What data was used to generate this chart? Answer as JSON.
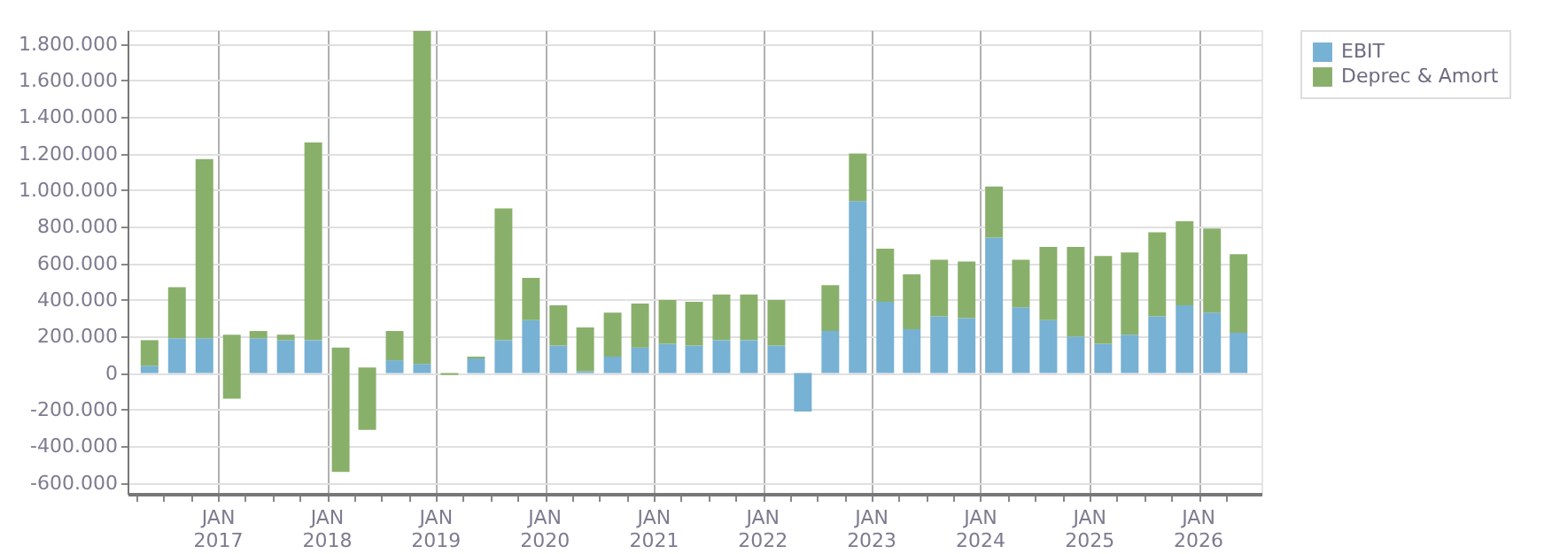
{
  "chart_data": {
    "type": "bar",
    "stacked": true,
    "x": [
      "2016-05-15",
      "2016-08-15",
      "2016-11-15",
      "2017-02-15",
      "2017-05-15",
      "2017-08-15",
      "2017-11-15",
      "2018-02-15",
      "2018-05-15",
      "2018-08-15",
      "2018-11-15",
      "2019-02-15",
      "2019-05-15",
      "2019-08-15",
      "2019-11-15",
      "2020-02-15",
      "2020-05-15",
      "2020-08-15",
      "2020-11-15",
      "2021-02-15",
      "2021-05-15",
      "2021-08-15",
      "2021-11-15",
      "2022-02-15",
      "2022-05-15",
      "2022-08-15",
      "2022-11-15",
      "2023-02-15",
      "2023-05-15",
      "2023-08-15",
      "2023-11-15",
      "2024-02-15",
      "2024-05-15",
      "2024-08-15",
      "2024-11-15",
      "2025-02-15",
      "2025-05-15",
      "2025-08-15",
      "2025-11-15",
      "2026-02-15",
      "2026-05-15"
    ],
    "series": [
      {
        "name": "EBIT",
        "color": "#77b1d4",
        "values": [
          40000,
          190000,
          190000,
          null,
          190000,
          180000,
          180000,
          null,
          null,
          70000,
          50000,
          null,
          80000,
          180000,
          290000,
          150000,
          10000,
          90000,
          140000,
          160000,
          150000,
          180000,
          180000,
          150000,
          -210000,
          230000,
          940000,
          390000,
          240000,
          310000,
          300000,
          740000,
          360000,
          290000,
          200000,
          160000,
          210000,
          310000,
          370000,
          330000,
          220000
        ]
      },
      {
        "name": "Deprec & Amort",
        "color": "#89b06b",
        "base": [
          null,
          null,
          null,
          -140000,
          null,
          null,
          null,
          -540000,
          -310000,
          null,
          null,
          null,
          null,
          null,
          null,
          null,
          null,
          null,
          null,
          null,
          null,
          null,
          null,
          null,
          null,
          null,
          null,
          null,
          null,
          null,
          null,
          null,
          null,
          null,
          null,
          null,
          null,
          null,
          null,
          null,
          null
        ],
        "values": [
          140000,
          280000,
          980000,
          350000,
          40000,
          30000,
          1080000,
          680000,
          340000,
          160000,
          1820000,
          -10000,
          10000,
          720000,
          230000,
          220000,
          240000,
          240000,
          240000,
          240000,
          240000,
          250000,
          250000,
          250000,
          null,
          250000,
          260000,
          290000,
          300000,
          310000,
          310000,
          280000,
          260000,
          400000,
          490000,
          480000,
          450000,
          460000,
          460000,
          460000,
          430000
        ]
      }
    ],
    "xlim": [
      "2016-04-01",
      "2026-07-01"
    ],
    "xticks": [
      {
        "value": "2016-04-01",
        "label": null
      },
      {
        "value": "2016-07-01",
        "label": null
      },
      {
        "value": "2016-10-01",
        "label": null
      },
      {
        "value": "2017-01-01",
        "label": "JAN\n2017"
      },
      {
        "value": "2017-04-01",
        "label": null
      },
      {
        "value": "2017-07-01",
        "label": null
      },
      {
        "value": "2017-10-01",
        "label": null
      },
      {
        "value": "2018-01-01",
        "label": "JAN\n2018"
      },
      {
        "value": "2018-04-01",
        "label": null
      },
      {
        "value": "2018-07-01",
        "label": null
      },
      {
        "value": "2018-10-01",
        "label": null
      },
      {
        "value": "2019-01-01",
        "label": "JAN\n2019"
      },
      {
        "value": "2019-04-01",
        "label": null
      },
      {
        "value": "2019-07-01",
        "label": null
      },
      {
        "value": "2019-10-01",
        "label": null
      },
      {
        "value": "2020-01-01",
        "label": "JAN\n2020"
      },
      {
        "value": "2020-04-01",
        "label": null
      },
      {
        "value": "2020-07-01",
        "label": null
      },
      {
        "value": "2020-10-01",
        "label": null
      },
      {
        "value": "2021-01-01",
        "label": "JAN\n2021"
      },
      {
        "value": "2021-04-01",
        "label": null
      },
      {
        "value": "2021-07-01",
        "label": null
      },
      {
        "value": "2021-10-01",
        "label": null
      },
      {
        "value": "2022-01-01",
        "label": "JAN\n2022"
      },
      {
        "value": "2022-04-01",
        "label": null
      },
      {
        "value": "2022-07-01",
        "label": null
      },
      {
        "value": "2022-10-01",
        "label": null
      },
      {
        "value": "2023-01-01",
        "label": "JAN\n2023"
      },
      {
        "value": "2023-04-01",
        "label": null
      },
      {
        "value": "2023-07-01",
        "label": null
      },
      {
        "value": "2023-10-01",
        "label": null
      },
      {
        "value": "2024-01-01",
        "label": "JAN\n2024"
      },
      {
        "value": "2024-04-01",
        "label": null
      },
      {
        "value": "2024-07-01",
        "label": null
      },
      {
        "value": "2024-10-01",
        "label": null
      },
      {
        "value": "2025-01-01",
        "label": "JAN\n2025"
      },
      {
        "value": "2025-04-01",
        "label": null
      },
      {
        "value": "2025-07-01",
        "label": null
      },
      {
        "value": "2025-10-01",
        "label": null
      },
      {
        "value": "2026-01-01",
        "label": "JAN\n2026"
      },
      {
        "value": "2026-04-01",
        "label": null
      }
    ],
    "ylim": [
      -660000,
      1875000
    ],
    "yticks": [
      {
        "value": -600000,
        "label": "-600.000"
      },
      {
        "value": -400000,
        "label": "-400.000"
      },
      {
        "value": -200000,
        "label": "-200.000"
      },
      {
        "value": 0,
        "label": "0"
      },
      {
        "value": 200000,
        "label": "200.000"
      },
      {
        "value": 400000,
        "label": "400.000"
      },
      {
        "value": 600000,
        "label": "600.000"
      },
      {
        "value": 800000,
        "label": "800.000"
      },
      {
        "value": 1000000,
        "label": "1.000.000"
      },
      {
        "value": 1200000,
        "label": "1.200.000"
      },
      {
        "value": 1400000,
        "label": "1.400.000"
      },
      {
        "value": 1600000,
        "label": "1.600.000"
      },
      {
        "value": 1800000,
        "label": "1.800.000"
      }
    ],
    "grid": true,
    "legend": "top right"
  }
}
